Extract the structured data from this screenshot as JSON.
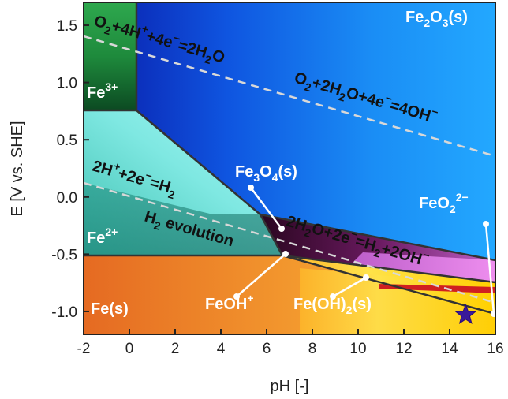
{
  "axes": {
    "xlabel": "pH [-]",
    "ylabel": "E [V vs. SHE]",
    "xlim": [
      -2,
      16
    ],
    "ylim": [
      -1.2,
      1.7
    ],
    "xticks": [
      "-2",
      "0",
      "2",
      "4",
      "6",
      "8",
      "10",
      "12",
      "14",
      "16"
    ],
    "yticks": [
      "1.5",
      "1.0",
      "0.5",
      "0.0",
      "-0.5",
      "-1.0"
    ]
  },
  "regions": {
    "fe3": {
      "base": "Fe",
      "sup": "3+"
    },
    "fe2": {
      "base": "Fe",
      "sup": "2+"
    },
    "fe": {
      "text": "Fe(s)"
    },
    "fe2o3": {
      "a": "Fe",
      "b": "2",
      "c": "O",
      "d": "3",
      "e": "(s)"
    },
    "fe3o4": {
      "a": "Fe",
      "b": "3",
      "c": "O",
      "d": "4",
      "e": "(s)"
    },
    "feoh": {
      "base": "FeOH",
      "sup": "+"
    },
    "feoh2": {
      "a": "Fe(OH)",
      "b": "2",
      "c": "(s)"
    },
    "feo2": {
      "a": "FeO",
      "b": "2",
      "c": "2−"
    }
  },
  "equations": {
    "o2_acid": {
      "p1": "O",
      "s1": "2",
      "p2": "+4H",
      "s2": "+",
      "p3": "+4e",
      "s3": "−",
      "p4": "=2H",
      "s4": "2",
      "p5": "O"
    },
    "o2_base": {
      "p1": "O",
      "s1": "2",
      "p2": "+2H",
      "s2": "2",
      "p3": "O+4e",
      "s3": "−",
      "p4": "=4OH",
      "s4": "−"
    },
    "h_acid": {
      "p1": "2H",
      "s1": "+",
      "p2": "+2e",
      "s2": "−",
      "p3": "=H",
      "s3": "2"
    },
    "h_base": {
      "p1": "2H",
      "s1": "2",
      "p2": "O+2e",
      "s2": "−",
      "p3": "=H",
      "s3": "2",
      "p4": "+2OH",
      "s4": "−"
    },
    "h2_evolution": {
      "p1": "H",
      "s1": "2",
      "p2": " evolution"
    }
  },
  "colors": {
    "fe2o3": "#1e90ff",
    "fe3": "#1f8a3a",
    "fe2": "#7fe8e0",
    "fe": "#f08a2a",
    "feoh2": "#ffd200",
    "fe3o4": "#4a0a3a",
    "feo2": "#e07ae0"
  },
  "marker": {
    "name": "star-icon",
    "pH": 14.7,
    "E": -1.03
  }
}
